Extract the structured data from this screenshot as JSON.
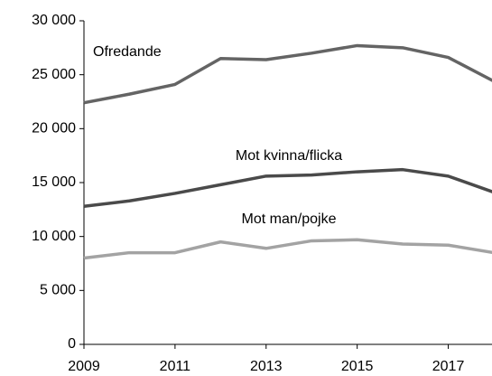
{
  "chart_data": {
    "type": "line",
    "x": [
      2009,
      2010,
      2011,
      2012,
      2013,
      2014,
      2015,
      2016,
      2017,
      2018
    ],
    "series": [
      {
        "name": "Ofredande",
        "color": "#646464",
        "values": [
          22400,
          23200,
          24100,
          26500,
          26400,
          27000,
          27700,
          27500,
          26600,
          24400
        ]
      },
      {
        "name": "Mot kvinna/flicka",
        "color": "#4a4a4a",
        "values": [
          12800,
          13300,
          14000,
          14800,
          15600,
          15700,
          16000,
          16200,
          15600,
          14100
        ]
      },
      {
        "name": "Mot man/pojke",
        "color": "#a3a3a3",
        "values": [
          8000,
          8500,
          8500,
          9500,
          8900,
          9600,
          9700,
          9300,
          9200,
          8500
        ]
      }
    ],
    "xlim": [
      2009,
      2018
    ],
    "xticks": [
      2009,
      2011,
      2013,
      2015,
      2017
    ],
    "ylim": [
      0,
      30000
    ],
    "yticks": [
      0,
      {
        "value": 5000,
        "label": "5 000"
      },
      {
        "value": 10000,
        "label": "10 000"
      },
      {
        "value": 15000,
        "label": "15 000"
      },
      {
        "value": 20000,
        "label": "20 000"
      },
      {
        "value": 25000,
        "label": "25 000"
      },
      {
        "value": 30000,
        "label": "30 000"
      }
    ],
    "grid": false
  }
}
